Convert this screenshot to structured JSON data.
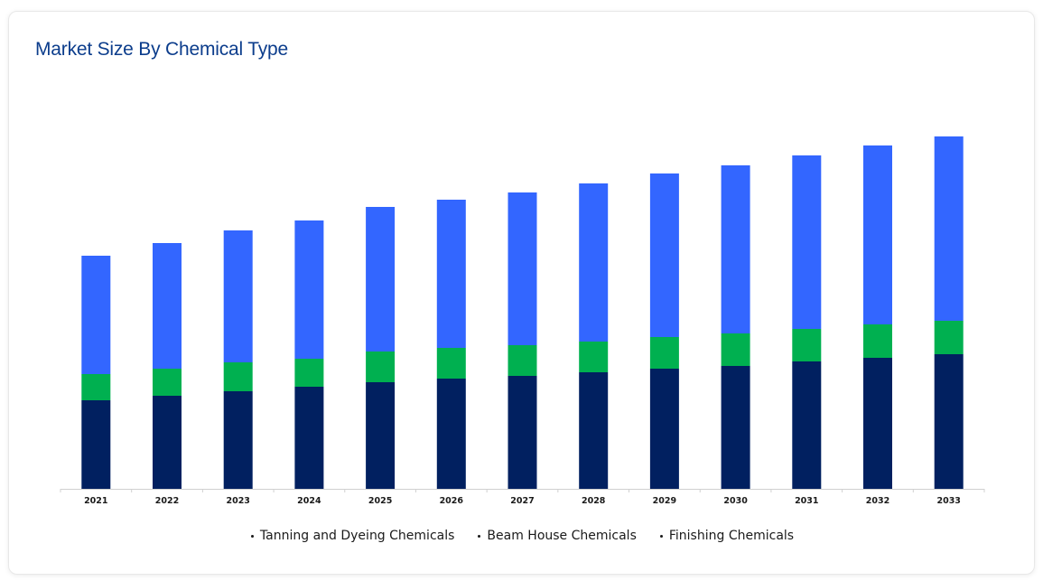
{
  "title": "Market Size By Chemical Type",
  "chart_data": {
    "type": "bar",
    "stacked": true,
    "categories": [
      "2021",
      "2022",
      "2023",
      "2024",
      "2025",
      "2026",
      "2027",
      "2028",
      "2029",
      "2030",
      "2031",
      "2032",
      "2033"
    ],
    "series": [
      {
        "name": "Tanning and Dyeing Chemicals",
        "color": "#012060",
        "values": [
          98,
          103,
          108,
          113,
          118,
          122,
          125,
          129,
          133,
          136,
          141,
          145,
          149
        ]
      },
      {
        "name": "Beam House Chemicals",
        "color": "#00b050",
        "values": [
          29,
          30,
          32,
          31,
          34,
          34,
          34,
          34,
          35,
          36,
          36,
          37,
          37
        ]
      },
      {
        "name": "Finishing Chemicals",
        "color": "#3366ff",
        "values": [
          131,
          139,
          146,
          153,
          160,
          164,
          169,
          175,
          181,
          186,
          192,
          198,
          204
        ]
      }
    ],
    "ylim": [
      0,
      400
    ],
    "grid": false,
    "legend_position": "bottom"
  }
}
